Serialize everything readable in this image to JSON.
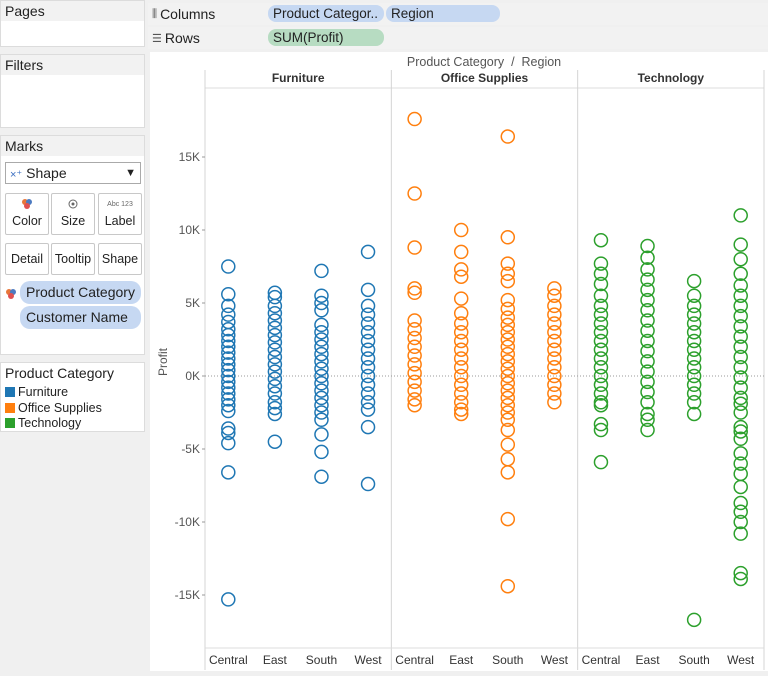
{
  "panels": {
    "pages": "Pages",
    "filters": "Filters",
    "marks": "Marks"
  },
  "shelves": {
    "columns_label": "Columns",
    "columns_pills": [
      "Product Categor..",
      "Region"
    ],
    "rows_label": "Rows",
    "rows_pills": [
      "SUM(Profit)"
    ]
  },
  "marks": {
    "type": "Shape",
    "buttons": [
      "Color",
      "Size",
      "Label",
      "Detail",
      "Tooltip",
      "Shape"
    ],
    "label_icon_text": "Abc 123",
    "fields": [
      "Product Category",
      "Customer Name"
    ]
  },
  "legend": {
    "title": "Product Category",
    "items": [
      {
        "label": "Furniture",
        "color": "#1f77b4"
      },
      {
        "label": "Office Supplies",
        "color": "#ff7f0e"
      },
      {
        "label": "Technology",
        "color": "#2ca02c"
      }
    ]
  },
  "chart_data": {
    "type": "scatter",
    "title": "Product Category  /  Region",
    "ylabel": "Profit",
    "ylim": [
      -19000,
      21000
    ],
    "yticks": [
      {
        "value": 15000,
        "label": "15K"
      },
      {
        "value": 10000,
        "label": "10K"
      },
      {
        "value": 5000,
        "label": "5K"
      },
      {
        "value": 0,
        "label": "0K"
      },
      {
        "value": -5000,
        "label": "-5K"
      },
      {
        "value": -10000,
        "label": "-10K"
      },
      {
        "value": -15000,
        "label": "-15K"
      }
    ],
    "panes": [
      {
        "name": "Furniture",
        "color": "#1f77b4",
        "regions": [
          {
            "name": "Central",
            "points": [
              7500,
              5600,
              4800,
              4200,
              3700,
              3200,
              2800,
              2400,
              2000,
              1600,
              1200,
              800,
              400,
              0,
              -400,
              -800,
              -1200,
              -1600,
              -2000,
              -2400,
              -3600,
              -3900,
              -4600,
              -6600,
              -15300
            ]
          },
          {
            "name": "East",
            "points": [
              5700,
              5400,
              4800,
              4300,
              3800,
              3300,
              2800,
              2300,
              1800,
              1300,
              800,
              300,
              -200,
              -700,
              -1200,
              -1800,
              -2200,
              -2600,
              -4500
            ]
          },
          {
            "name": "South",
            "points": [
              7200,
              5500,
              5000,
              4500,
              3500,
              3000,
              2500,
              2000,
              1500,
              1000,
              500,
              0,
              -500,
              -1000,
              -1500,
              -2000,
              -2500,
              -3000,
              -4000,
              -5200,
              -6900
            ]
          },
          {
            "name": "West",
            "points": [
              8500,
              5900,
              4800,
              4200,
              3600,
              3000,
              2400,
              1800,
              1200,
              600,
              0,
              -600,
              -1200,
              -1800,
              -2300,
              -3500,
              -7400
            ]
          }
        ]
      },
      {
        "name": "Office Supplies",
        "color": "#ff7f0e",
        "regions": [
          {
            "name": "Central",
            "points": [
              17600,
              12500,
              8800,
              6000,
              5700,
              3800,
              3200,
              2600,
              2000,
              1400,
              800,
              200,
              -400,
              -1000,
              -1600,
              -2000
            ]
          },
          {
            "name": "East",
            "points": [
              10000,
              8500,
              7300,
              6800,
              5300,
              4300,
              3600,
              3000,
              2400,
              1800,
              1200,
              600,
              0,
              -600,
              -1200,
              -1800,
              -2300,
              -2600
            ]
          },
          {
            "name": "South",
            "points": [
              16400,
              9500,
              7700,
              7000,
              6500,
              5200,
              4600,
              4000,
              3500,
              3000,
              2500,
              2000,
              1500,
              1000,
              500,
              0,
              -500,
              -1000,
              -1500,
              -2000,
              -2500,
              -3000,
              -3700,
              -4700,
              -5700,
              -6600,
              -9800,
              -14400
            ]
          },
          {
            "name": "West",
            "points": [
              6000,
              5500,
              4800,
              4200,
              3600,
              3000,
              2400,
              1800,
              1200,
              600,
              0,
              -600,
              -1200,
              -1800
            ]
          }
        ]
      },
      {
        "name": "Technology",
        "color": "#2ca02c",
        "regions": [
          {
            "name": "Central",
            "points": [
              9300,
              7700,
              7000,
              6300,
              5500,
              4800,
              4200,
              3600,
              3000,
              2400,
              1800,
              1200,
              600,
              0,
              -600,
              -1200,
              -1800,
              -2000,
              -3300,
              -3700,
              -5900
            ]
          },
          {
            "name": "East",
            "points": [
              8900,
              8100,
              7300,
              6600,
              5900,
              5200,
              4500,
              3800,
              3100,
              2400,
              1700,
              1000,
              300,
              -400,
              -1100,
              -1800,
              -2600,
              -3000,
              -3700
            ]
          },
          {
            "name": "South",
            "points": [
              6500,
              5500,
              4800,
              4200,
              3600,
              3000,
              2400,
              1800,
              1200,
              600,
              0,
              -600,
              -1200,
              -1800,
              -2600,
              -16700
            ]
          },
          {
            "name": "West",
            "points": [
              11000,
              9000,
              8000,
              7000,
              6200,
              5500,
              4800,
              4100,
              3400,
              2700,
              2000,
              1300,
              600,
              -100,
              -800,
              -1500,
              -1900,
              -2500,
              -3500,
              -3800,
              -4300,
              -5300,
              -6000,
              -6700,
              -7600,
              -8700,
              -9300,
              -10000,
              -10800,
              -13500,
              -13900
            ]
          }
        ]
      }
    ]
  }
}
